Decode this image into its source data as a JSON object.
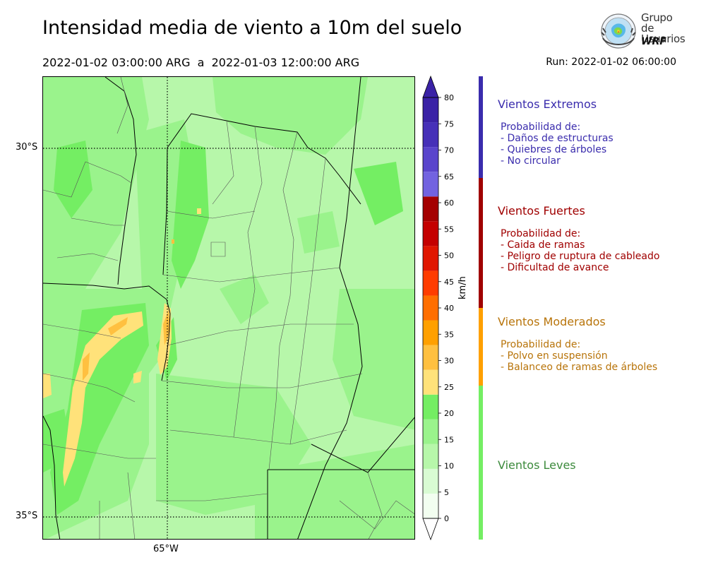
{
  "header": {
    "title": "Intensidad media de viento a 10m del suelo",
    "period": "2022-01-02 03:00:00 ARG  a  2022-01-03 12:00:00 ARG",
    "run": "Run: 2022-01-02 06:00:00"
  },
  "logo": {
    "line1": "Grupo de",
    "line2": "Usuarios",
    "line3": "WRF"
  },
  "map": {
    "lat_labels": [
      "30°S",
      "35°S"
    ],
    "lon_labels": [
      "65°W"
    ],
    "grid_lines": "dotted"
  },
  "colorbar": {
    "unit": "km/h",
    "ticks": [
      "0",
      "5",
      "10",
      "15",
      "20",
      "25",
      "30",
      "35",
      "40",
      "45",
      "50",
      "55",
      "60",
      "65",
      "70",
      "75",
      "80"
    ],
    "colors": [
      "#f2fef0",
      "#d9fbd3",
      "#b7f7aa",
      "#9af38c",
      "#74ee63",
      "#ffe27a",
      "#ffc040",
      "#ffa000",
      "#ff6e00",
      "#ff3c00",
      "#e01600",
      "#c40000",
      "#a40000",
      "#7263e0",
      "#5a45cc",
      "#4630b8",
      "#3a22a6"
    ]
  },
  "categories": [
    {
      "title": "Vientos Extremos",
      "color": "#3a2cad",
      "lines": [
        "Probabilidad de:",
        "- Daños de estructuras",
        "- Quiebres de árboles",
        "- No circular"
      ]
    },
    {
      "title": "Vientos Fuertes",
      "color": "#a00000",
      "lines": [
        "Probabilidad de:",
        "- Caida de ramas",
        "- Peligro de ruptura de cableado",
        "- Dificultad de avance"
      ]
    },
    {
      "title": "Vientos Moderados",
      "color": "#b8740a",
      "bar_color": "#ffa000",
      "lines": [
        "Probabilidad de:",
        "- Polvo en suspensión",
        "- Balanceo de ramas de árboles"
      ]
    },
    {
      "title": "Vientos Leves",
      "color": "#3c8a3c",
      "bar_color": "#74ee63",
      "lines": []
    }
  ]
}
